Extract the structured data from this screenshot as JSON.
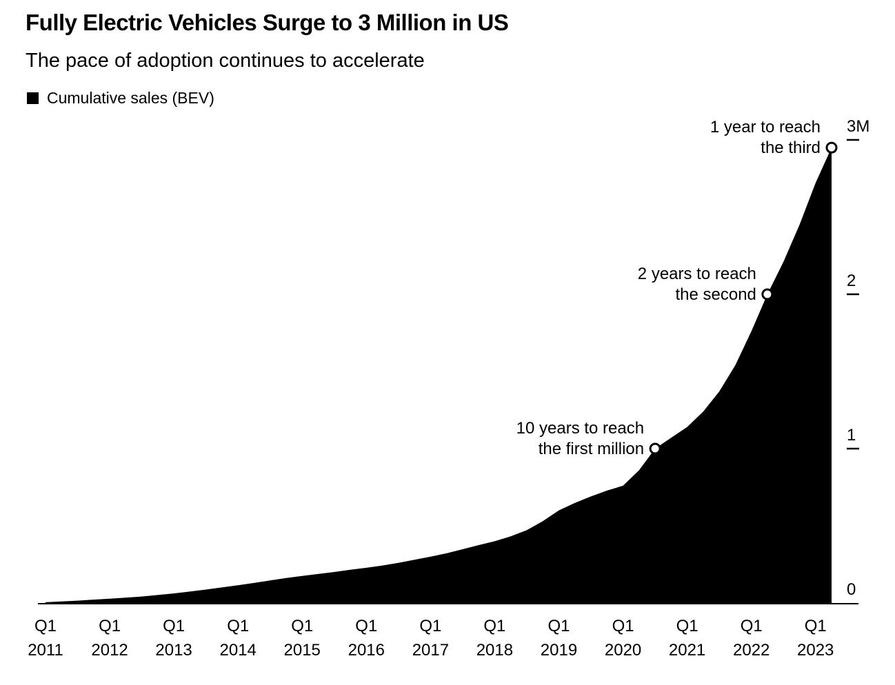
{
  "header": {
    "title": "Fully Electric Vehicles Surge to 3 Million in US",
    "subtitle": "The pace of adoption continues to accelerate"
  },
  "legend": {
    "label": "Cumulative sales (BEV)",
    "swatch_color": "#000000"
  },
  "chart_data": {
    "type": "area",
    "title": "Fully Electric Vehicles Surge to 3 Million in US",
    "subtitle": "The pace of adoption continues to accelerate",
    "series_name": "Cumulative sales (BEV)",
    "unit": "millions of vehicles",
    "ylim": [
      0,
      3.1
    ],
    "grid": false,
    "legend_position": "top-left",
    "colors": {
      "area": "#000000",
      "background": "#ffffff",
      "text": "#000000",
      "marker_fill": "#ffffff",
      "marker_stroke": "#000000"
    },
    "quarters": [
      "2011Q1",
      "2011Q2",
      "2011Q3",
      "2011Q4",
      "2012Q1",
      "2012Q2",
      "2012Q3",
      "2012Q4",
      "2013Q1",
      "2013Q2",
      "2013Q3",
      "2013Q4",
      "2014Q1",
      "2014Q2",
      "2014Q3",
      "2014Q4",
      "2015Q1",
      "2015Q2",
      "2015Q3",
      "2015Q4",
      "2016Q1",
      "2016Q2",
      "2016Q3",
      "2016Q4",
      "2017Q1",
      "2017Q2",
      "2017Q3",
      "2017Q4",
      "2018Q1",
      "2018Q2",
      "2018Q3",
      "2018Q4",
      "2019Q1",
      "2019Q2",
      "2019Q3",
      "2019Q4",
      "2020Q1",
      "2020Q2",
      "2020Q3",
      "2020Q4",
      "2021Q1",
      "2021Q2",
      "2021Q3",
      "2021Q4",
      "2022Q1",
      "2022Q2",
      "2022Q3",
      "2022Q4",
      "2023Q1",
      "2023Q2"
    ],
    "values": [
      0.005,
      0.01,
      0.015,
      0.022,
      0.028,
      0.035,
      0.042,
      0.052,
      0.062,
      0.074,
      0.087,
      0.101,
      0.115,
      0.13,
      0.146,
      0.162,
      0.175,
      0.188,
      0.201,
      0.215,
      0.228,
      0.243,
      0.26,
      0.28,
      0.3,
      0.322,
      0.348,
      0.375,
      0.4,
      0.432,
      0.472,
      0.53,
      0.6,
      0.648,
      0.69,
      0.728,
      0.76,
      0.86,
      1.0,
      1.07,
      1.14,
      1.24,
      1.37,
      1.54,
      1.76,
      2.0,
      2.21,
      2.45,
      2.72,
      2.95
    ],
    "x_tick_labels": [
      {
        "line1": "Q1",
        "line2": "2011"
      },
      {
        "line1": "Q1",
        "line2": "2012"
      },
      {
        "line1": "Q1",
        "line2": "2013"
      },
      {
        "line1": "Q1",
        "line2": "2014"
      },
      {
        "line1": "Q1",
        "line2": "2015"
      },
      {
        "line1": "Q1",
        "line2": "2016"
      },
      {
        "line1": "Q1",
        "line2": "2017"
      },
      {
        "line1": "Q1",
        "line2": "2018"
      },
      {
        "line1": "Q1",
        "line2": "2019"
      },
      {
        "line1": "Q1",
        "line2": "2020"
      },
      {
        "line1": "Q1",
        "line2": "2021"
      },
      {
        "line1": "Q1",
        "line2": "2022"
      },
      {
        "line1": "Q1",
        "line2": "2023"
      }
    ],
    "y_ticks": [
      {
        "value": 0,
        "label": "0",
        "dash": false
      },
      {
        "value": 1,
        "label": "1",
        "dash": true
      },
      {
        "value": 2,
        "label": "2",
        "dash": true
      },
      {
        "value": 3,
        "label": "3M",
        "dash": true
      }
    ],
    "annotations": [
      {
        "lines": [
          "10 years to reach",
          "the first million"
        ],
        "quarter": "2020Q3",
        "value": 1.0
      },
      {
        "lines": [
          "2 years to reach",
          "the second"
        ],
        "quarter": "2022Q2",
        "value": 2.0
      },
      {
        "lines": [
          "1 year to reach",
          "the third"
        ],
        "quarter": "2023Q2",
        "value": 2.95
      }
    ]
  }
}
